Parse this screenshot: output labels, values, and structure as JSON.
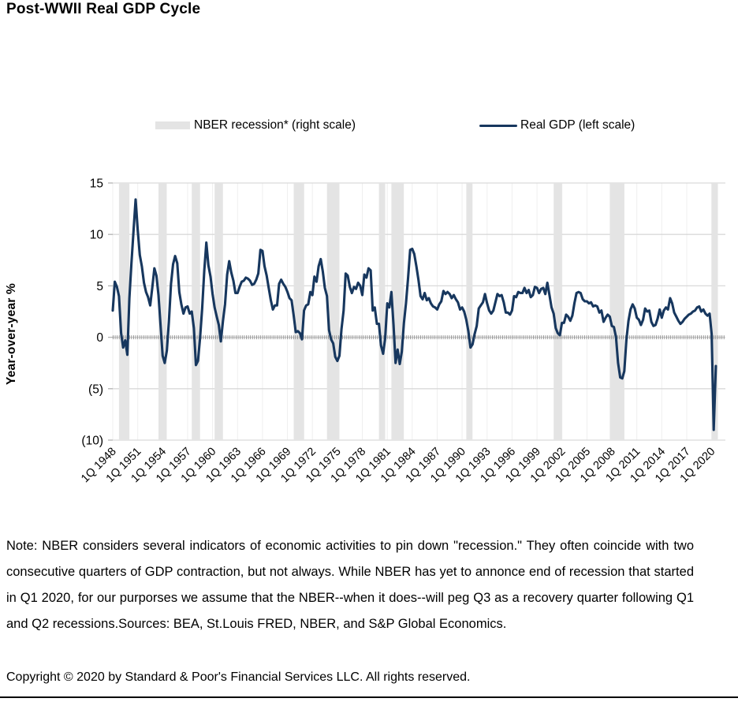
{
  "header": {
    "title": "Post-WWII Real GDP Cycle"
  },
  "legend": {
    "recession_label": "NBER recession* (right scale)",
    "gdp_label": "Real GDP (left scale)"
  },
  "colors": {
    "gdp_line": "#17375E",
    "recession_band": "#e4e4e4",
    "gridline": "#d9d9d9",
    "vertical_gridline": "#efefef",
    "zero_hatch": "#8c8c8c"
  },
  "chart_data": {
    "type": "line",
    "title": "Post-WWII Real GDP Cycle",
    "xlabel": "",
    "ylabel": "Year-over-year %",
    "ylim": [
      -10,
      15
    ],
    "grid": "horizontal and vertical, light gray; zero line drawn as hatched tick line",
    "legend_position": "top",
    "y_ticks": [
      {
        "value": 15,
        "label": "15"
      },
      {
        "value": 10,
        "label": "10"
      },
      {
        "value": 5,
        "label": "5"
      },
      {
        "value": 0,
        "label": "0"
      },
      {
        "value": -5,
        "label": "(5)"
      },
      {
        "value": -10,
        "label": "(10)"
      }
    ],
    "x_ticks": [
      "1Q 1948",
      "1Q 1951",
      "1Q 1954",
      "1Q 1957",
      "1Q 1960",
      "1Q 1963",
      "1Q 1966",
      "1Q 1969",
      "1Q 1972",
      "1Q 1975",
      "1Q 1978",
      "1Q 1981",
      "1Q 1984",
      "1Q 1987",
      "1Q 1990",
      "1Q 1993",
      "1Q 1996",
      "1Q 1999",
      "1Q 2002",
      "1Q 2005",
      "1Q 2008",
      "1Q 2011",
      "1Q 2014",
      "1Q 2017",
      "1Q 2020"
    ],
    "x_range": [
      "1Q 1948",
      "3Q 2020"
    ],
    "series": [
      {
        "name": "Real GDP (left scale)",
        "color": "#17375E",
        "start": "1Q 1948",
        "frequency": "quarterly",
        "unit": "percent, year-over-year",
        "values": [
          2.6,
          5.4,
          4.9,
          4.0,
          0.4,
          -1.0,
          -0.3,
          -1.7,
          3.8,
          7.2,
          10.4,
          13.4,
          10.4,
          8.0,
          6.9,
          5.3,
          4.4,
          3.9,
          3.1,
          4.8,
          6.7,
          6.0,
          4.1,
          1.1,
          -1.8,
          -2.5,
          -1.3,
          1.5,
          5.2,
          7.1,
          7.9,
          7.2,
          4.4,
          3.2,
          2.3,
          2.9,
          3.0,
          2.3,
          2.5,
          0.9,
          -2.7,
          -2.3,
          0.0,
          2.8,
          6.5,
          9.2,
          7.0,
          5.9,
          4.2,
          2.9,
          2.0,
          1.2,
          -0.4,
          1.6,
          3.2,
          6.1,
          7.4,
          6.3,
          5.5,
          4.3,
          4.3,
          4.9,
          5.4,
          5.5,
          5.8,
          5.7,
          5.5,
          5.1,
          5.2,
          5.6,
          6.2,
          8.5,
          8.4,
          6.9,
          6.0,
          4.8,
          3.6,
          2.7,
          3.1,
          3.1,
          5.2,
          5.6,
          5.2,
          4.9,
          4.4,
          3.8,
          3.6,
          2.1,
          0.5,
          0.6,
          0.4,
          -0.2,
          2.6,
          3.1,
          3.2,
          4.4,
          4.1,
          5.9,
          5.4,
          6.9,
          7.6,
          6.4,
          4.8,
          4.0,
          0.7,
          -0.2,
          -0.6,
          -1.9,
          -2.3,
          -1.8,
          0.8,
          2.6,
          6.2,
          6.0,
          4.9,
          4.3,
          4.9,
          4.7,
          5.3,
          5.0,
          4.1,
          6.1,
          5.8,
          6.7,
          6.5,
          2.6,
          2.9,
          1.3,
          1.3,
          -0.8,
          -1.6,
          -0.1,
          3.3,
          2.9,
          4.4,
          1.2,
          -2.5,
          -1.2,
          -2.6,
          -1.4,
          1.4,
          3.3,
          5.7,
          8.5,
          8.6,
          8.1,
          6.9,
          5.6,
          4.0,
          3.7,
          4.3,
          3.6,
          3.8,
          3.3,
          3.0,
          2.9,
          2.7,
          3.2,
          3.5,
          4.5,
          4.2,
          4.4,
          4.2,
          3.8,
          4.1,
          3.7,
          3.4,
          2.7,
          2.9,
          2.5,
          1.7,
          0.6,
          -1.0,
          -0.7,
          0.3,
          1.1,
          2.8,
          3.1,
          3.4,
          4.2,
          3.3,
          2.6,
          2.3,
          2.6,
          3.4,
          4.2,
          4.0,
          4.1,
          3.4,
          2.4,
          2.4,
          2.2,
          2.6,
          4.0,
          3.9,
          4.4,
          4.3,
          4.3,
          4.8,
          4.3,
          4.6,
          3.9,
          4.1,
          4.9,
          4.8,
          4.3,
          4.7,
          4.8,
          4.2,
          5.3,
          4.1,
          2.9,
          2.3,
          0.9,
          0.4,
          0.2,
          1.4,
          1.4,
          2.2,
          2.0,
          1.6,
          2.1,
          3.3,
          4.3,
          4.4,
          4.3,
          3.7,
          3.5,
          3.5,
          3.3,
          3.4,
          3.0,
          3.1,
          3.0,
          2.4,
          2.6,
          1.5,
          1.9,
          2.2,
          2.0,
          1.1,
          1.0,
          0.0,
          -2.5,
          -3.9,
          -4.0,
          -3.3,
          -0.2,
          1.6,
          2.7,
          3.2,
          2.8,
          1.9,
          1.7,
          1.2,
          1.7,
          2.8,
          2.5,
          2.6,
          1.5,
          1.1,
          1.2,
          1.8,
          2.7,
          1.9,
          2.6,
          2.9,
          2.7,
          3.8,
          3.3,
          2.4,
          2.0,
          1.6,
          1.3,
          1.5,
          1.8,
          2.0,
          2.2,
          2.3,
          2.5,
          2.6,
          2.9,
          3.0,
          2.5,
          2.7,
          2.3,
          2.1,
          2.3,
          0.3,
          -9.0,
          -2.8
        ]
      }
    ],
    "recessions": {
      "name": "NBER recession* (right scale)",
      "color": "#e4e4e4",
      "periods": [
        {
          "start": "4Q 1948",
          "end": "4Q 1949"
        },
        {
          "start": "3Q 1953",
          "end": "2Q 1954"
        },
        {
          "start": "3Q 1957",
          "end": "2Q 1958"
        },
        {
          "start": "2Q 1960",
          "end": "1Q 1961"
        },
        {
          "start": "4Q 1969",
          "end": "4Q 1970"
        },
        {
          "start": "4Q 1973",
          "end": "1Q 1975"
        },
        {
          "start": "1Q 1980",
          "end": "3Q 1980"
        },
        {
          "start": "3Q 1981",
          "end": "4Q 1982"
        },
        {
          "start": "3Q 1990",
          "end": "1Q 1991"
        },
        {
          "start": "1Q 2001",
          "end": "4Q 2001"
        },
        {
          "start": "4Q 2007",
          "end": "2Q 2009"
        },
        {
          "start": "1Q 2020",
          "end": "3Q 2020"
        }
      ]
    }
  },
  "footer": {
    "note": "Note: NBER considers several indicators of economic activities to pin down \"recession.\" They often coincide with two consecutive quarters of GDP contraction, but not always. While NBER has yet to annonce end of recession that started in Q1 2020, for our purporses we assume that the NBER--when it does--will peg Q3 as a recovery quarter following Q1 and Q2 recessions.Sources: BEA, St.Louis FRED, NBER, and S&P Global Economics.",
    "copyright": "Copyright © 2020 by Standard & Poor's Financial Services LLC. All rights reserved."
  }
}
